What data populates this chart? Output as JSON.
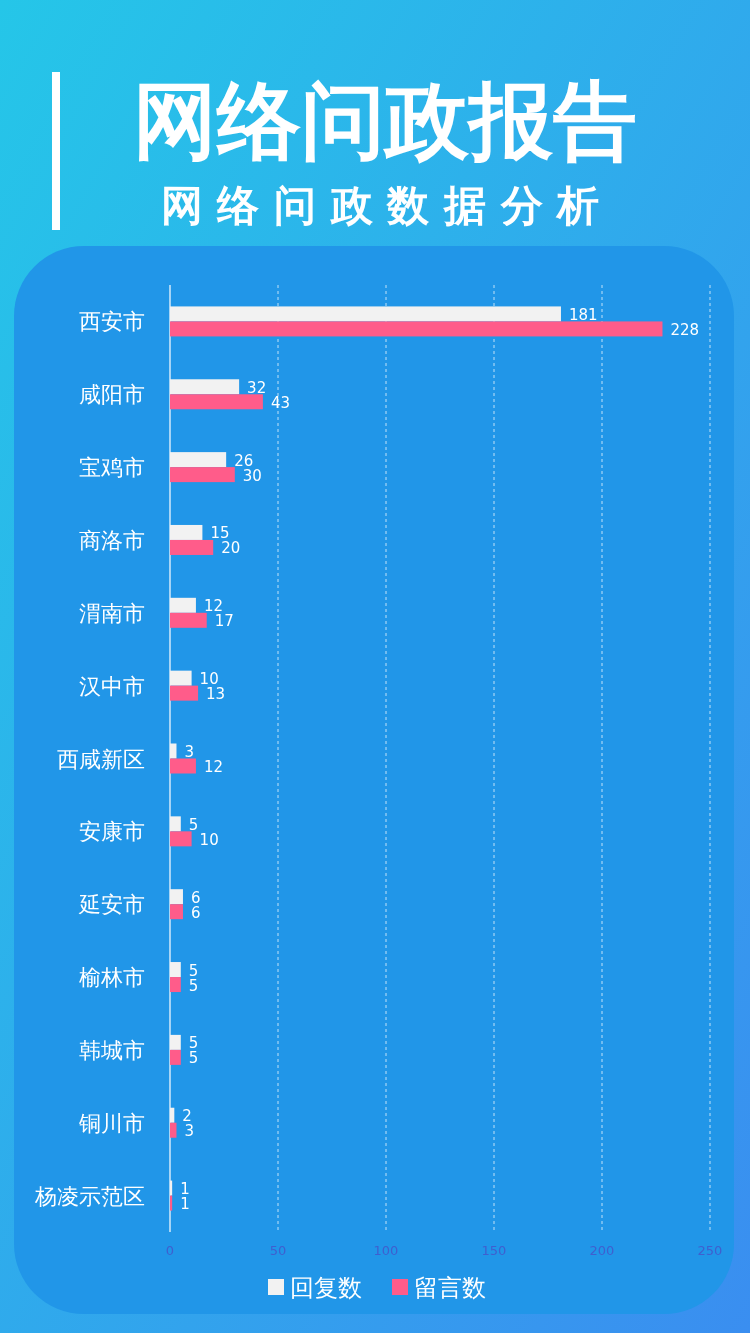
{
  "chart_data": {
    "type": "bar",
    "orientation": "horizontal",
    "title": "网络问政报告",
    "subtitle": "网 络 问 政 数 据 分 析",
    "categories": [
      "西安市",
      "咸阳市",
      "宝鸡市",
      "商洛市",
      "渭南市",
      "汉中市",
      "西咸新区",
      "安康市",
      "延安市",
      "榆林市",
      "韩城市",
      "铜川市",
      "杨凌示范区"
    ],
    "series": [
      {
        "name": "回复数",
        "color": "#f2f2f2",
        "values": [
          181,
          32,
          26,
          15,
          12,
          10,
          3,
          5,
          6,
          5,
          5,
          2,
          1
        ]
      },
      {
        "name": "留言数",
        "color": "#ff5c8a",
        "values": [
          228,
          43,
          30,
          20,
          17,
          13,
          12,
          10,
          6,
          5,
          5,
          3,
          1
        ]
      }
    ],
    "xlim": [
      0,
      250
    ],
    "xticks": [
      0,
      50,
      100,
      150,
      200,
      250
    ],
    "grid": "x",
    "legend": "bottom",
    "data_labels": true
  }
}
